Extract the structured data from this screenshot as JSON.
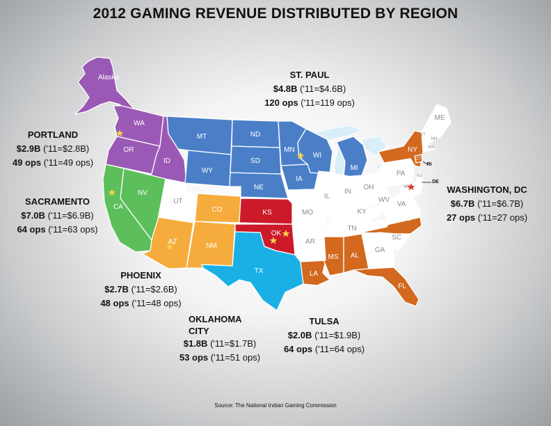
{
  "title": "2012 GAMING REVENUE DISTRIBUTED BY REGION",
  "source": "Source: The National Indian Gaming Commission",
  "colors": {
    "portland": "#9b59b6",
    "st_paul": "#4a7fc8",
    "sacramento": "#5cbf5c",
    "phoenix": "#f5ac3c",
    "oklahoma_city": "#1ab0e6",
    "tulsa": "#d0342c",
    "washington_dc": "#d2691e",
    "other": "#ffffff",
    "star": "#f5d34a",
    "star_dc": "#e03030"
  },
  "regions": [
    {
      "key": "st_paul",
      "name": "ST. PAUL",
      "revenue": "$4.8B",
      "revenue_prev": "('11=$4.6B)",
      "ops": "120 ops",
      "ops_prev": "('11=119 ops)"
    },
    {
      "key": "portland",
      "name": "PORTLAND",
      "revenue": "$2.9B",
      "revenue_prev": "('11=$2.8B)",
      "ops": "49 ops",
      "ops_prev": "('11=49 ops)"
    },
    {
      "key": "sacramento",
      "name": "SACRAMENTO",
      "revenue": "$7.0B",
      "revenue_prev": "('11=$6.9B)",
      "ops": "64 ops",
      "ops_prev": "('11=63 ops)"
    },
    {
      "key": "phoenix",
      "name": "PHOENIX",
      "revenue": "$2.7B",
      "revenue_prev": "('11=$2.6B)",
      "ops": "48 ops",
      "ops_prev": "('11=48 ops)"
    },
    {
      "key": "oklahoma_city",
      "name": "OKLAHOMA CITY",
      "revenue": "$1.8B",
      "revenue_prev": "('11=$1.7B)",
      "ops": "53 ops",
      "ops_prev": "('11=51 ops)"
    },
    {
      "key": "tulsa",
      "name": "TULSA",
      "revenue": "$2.0B",
      "revenue_prev": "('11=$1.9B)",
      "ops": "64 ops",
      "ops_prev": "('11=64 ops)"
    },
    {
      "key": "washington_dc",
      "name": "WASHINGTON, DC",
      "revenue": "$6.7B",
      "revenue_prev": "('11=$6.7B)",
      "ops": "27 ops",
      "ops_prev": "('11=27 ops)"
    }
  ],
  "states": {
    "alaska": "Alaska",
    "wa": "WA",
    "or": "OR",
    "id": "ID",
    "ca": "CA",
    "nv": "NV",
    "ut": "UT",
    "az": "AZ",
    "co": "CO",
    "nm": "NM",
    "mt": "MT",
    "wy": "WY",
    "nd": "ND",
    "sd": "SD",
    "ne": "NE",
    "mn": "MN",
    "ia": "IA",
    "wi": "WI",
    "mi": "MI",
    "ks": "KS",
    "ok": "OK",
    "tx": "TX",
    "mo": "MO",
    "ar": "AR",
    "la": "LA",
    "il": "IL",
    "in": "IN",
    "oh": "OH",
    "ky": "KY",
    "tn": "TN",
    "ms": "MS",
    "al": "AL",
    "ga": "GA",
    "fl": "FL",
    "sc": "SC",
    "nc": "NC",
    "va": "VA",
    "wv": "WV",
    "pa": "PA",
    "ny": "NY",
    "me": "ME",
    "vt": "VT",
    "nh": "NH",
    "ma": "MA",
    "ct": "CT",
    "ri": "RI",
    "de": "DE",
    "md": "MD",
    "nj": "NJ"
  }
}
